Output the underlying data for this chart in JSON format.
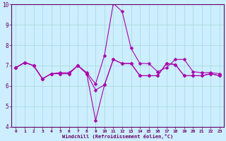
{
  "xlabel": "Windchill (Refroidissement éolien,°C)",
  "bg_color": "#cceeff",
  "grid_color": "#aadddd",
  "line_color": "#aa00aa",
  "axis_color": "#660066",
  "tick_color": "#660066",
  "label_color": "#660066",
  "x_values": [
    0,
    1,
    2,
    3,
    4,
    5,
    6,
    7,
    8,
    9,
    10,
    11,
    12,
    13,
    14,
    15,
    16,
    17,
    18,
    19,
    20,
    21,
    22,
    23
  ],
  "line1": [
    6.9,
    7.15,
    7.0,
    6.35,
    6.6,
    6.65,
    6.65,
    7.0,
    6.65,
    6.1,
    7.5,
    10.05,
    9.65,
    7.85,
    7.1,
    7.1,
    6.7,
    6.9,
    7.3,
    7.3,
    6.7,
    6.65,
    6.65,
    6.6
  ],
  "line2": [
    6.9,
    7.15,
    7.0,
    6.35,
    6.6,
    6.6,
    6.6,
    7.0,
    6.6,
    5.8,
    6.05,
    7.3,
    7.1,
    7.1,
    6.5,
    6.5,
    6.5,
    7.1,
    7.05,
    6.5,
    6.5,
    6.5,
    6.6,
    6.5
  ],
  "line3": [
    6.9,
    7.15,
    7.0,
    6.35,
    6.6,
    6.6,
    6.6,
    7.0,
    6.6,
    4.3,
    6.05,
    7.3,
    7.1,
    7.1,
    6.5,
    6.5,
    6.5,
    7.1,
    7.05,
    6.5,
    6.5,
    6.5,
    6.6,
    6.5
  ],
  "ylim": [
    4,
    10
  ],
  "yticks": [
    4,
    5,
    6,
    7,
    8,
    9,
    10
  ],
  "xticks": [
    0,
    1,
    2,
    3,
    4,
    5,
    6,
    7,
    8,
    9,
    10,
    11,
    12,
    13,
    14,
    15,
    16,
    17,
    18,
    19,
    20,
    21,
    22,
    23
  ]
}
